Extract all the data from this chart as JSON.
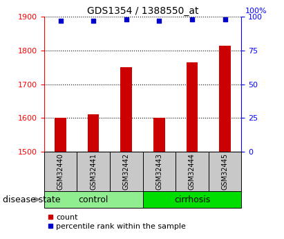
{
  "title": "GDS1354 / 1388550_at",
  "samples": [
    "GSM32440",
    "GSM32441",
    "GSM32442",
    "GSM32443",
    "GSM32444",
    "GSM32445"
  ],
  "counts": [
    1600,
    1610,
    1750,
    1600,
    1765,
    1815
  ],
  "percentile_ranks": [
    97,
    97,
    98,
    97,
    98,
    98
  ],
  "groups": [
    "control",
    "control",
    "control",
    "cirrhosis",
    "cirrhosis",
    "cirrhosis"
  ],
  "control_color": "#90EE90",
  "cirrhosis_color": "#00DD00",
  "sample_box_color": "#C8C8C8",
  "ylim_left": [
    1500,
    1900
  ],
  "ylim_right": [
    0,
    100
  ],
  "yticks_left": [
    1500,
    1600,
    1700,
    1800,
    1900
  ],
  "yticks_right": [
    0,
    25,
    50,
    75,
    100
  ],
  "bar_color": "#CC0000",
  "dot_color": "#0000CC",
  "bar_width": 0.35,
  "title_fontsize": 10,
  "tick_fontsize": 8,
  "label_fontsize": 9,
  "legend_fontsize": 8,
  "sample_fontsize": 7
}
